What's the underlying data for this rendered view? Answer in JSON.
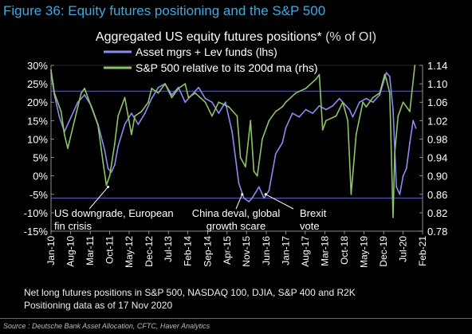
{
  "figure_title": "Figure 36: Equity futures positioning and the S&P 500",
  "chart_data": {
    "type": "line",
    "title": "Aggregated US equity futures positions*",
    "title_unit": "(% of OI)",
    "series": [
      {
        "name": "Asset mgrs + Lev funds (lhs)",
        "axis": "left",
        "color": "#8c8cf0",
        "x": [
          2010.0,
          2010.1,
          2010.25,
          2010.4,
          2010.6,
          2010.8,
          2011.0,
          2011.2,
          2011.4,
          2011.6,
          2011.7,
          2011.8,
          2011.9,
          2012.0,
          2012.2,
          2012.4,
          2012.6,
          2012.8,
          2013.0,
          2013.2,
          2013.4,
          2013.6,
          2013.8,
          2014.0,
          2014.2,
          2014.4,
          2014.6,
          2014.8,
          2015.0,
          2015.2,
          2015.4,
          2015.6,
          2015.75,
          2015.9,
          2016.0,
          2016.2,
          2016.35,
          2016.5,
          2016.7,
          2016.9,
          2017.0,
          2017.2,
          2017.4,
          2017.6,
          2017.8,
          2018.0,
          2018.2,
          2018.4,
          2018.6,
          2018.8,
          2018.9,
          2019.0,
          2019.2,
          2019.4,
          2019.6,
          2019.8,
          2020.0,
          2020.1,
          2020.2,
          2020.3,
          2020.4,
          2020.5,
          2020.6,
          2020.7,
          2020.8,
          2020.88
        ],
        "values": [
          28,
          22,
          16,
          12,
          16,
          20,
          22,
          19,
          14,
          7,
          2,
          1,
          3,
          8,
          14,
          17,
          14,
          17,
          21,
          24,
          25,
          22,
          24,
          20,
          22,
          24,
          21,
          20,
          17,
          20,
          12,
          -2,
          -6,
          -7,
          -6,
          -3,
          -6,
          -4,
          6,
          9,
          13,
          17,
          16,
          18,
          17,
          19,
          18,
          19,
          21,
          19,
          18,
          16,
          20,
          21,
          20,
          22,
          28,
          27,
          18,
          -3,
          -5,
          0,
          2,
          9,
          15,
          13
        ]
      },
      {
        "name": "S&P 500 relative to its 200d ma (rhs)",
        "axis": "right",
        "color": "#8fc36a",
        "x": [
          2010.0,
          2010.1,
          2010.3,
          2010.4,
          2010.5,
          2010.7,
          2010.9,
          2011.0,
          2011.2,
          2011.4,
          2011.55,
          2011.65,
          2011.75,
          2011.9,
          2012.0,
          2012.2,
          2012.4,
          2012.5,
          2012.7,
          2012.9,
          2013.0,
          2013.2,
          2013.4,
          2013.6,
          2013.8,
          2014.0,
          2014.1,
          2014.3,
          2014.6,
          2014.8,
          2015.0,
          2015.3,
          2015.55,
          2015.65,
          2015.8,
          2015.95,
          2016.05,
          2016.15,
          2016.3,
          2016.5,
          2016.7,
          2016.9,
          2017.0,
          2017.3,
          2017.6,
          2017.9,
          2018.0,
          2018.1,
          2018.2,
          2018.5,
          2018.7,
          2018.85,
          2018.95,
          2019.1,
          2019.3,
          2019.4,
          2019.6,
          2019.8,
          2019.95,
          2020.0,
          2020.1,
          2020.2,
          2020.25,
          2020.35,
          2020.5,
          2020.7,
          2020.85
        ],
        "values": [
          1.13,
          1.08,
          1.04,
          0.99,
          0.96,
          1.02,
          1.08,
          1.09,
          1.05,
          1.01,
          0.93,
          0.88,
          0.9,
          0.97,
          1.03,
          1.07,
          0.99,
          1.03,
          1.04,
          1.06,
          1.09,
          1.08,
          1.1,
          1.07,
          1.09,
          1.1,
          1.07,
          1.08,
          1.06,
          1.03,
          1.06,
          1.05,
          1.03,
          0.94,
          0.92,
          1.02,
          0.91,
          0.9,
          0.98,
          1.02,
          1.04,
          1.05,
          1.06,
          1.08,
          1.09,
          1.11,
          1.12,
          1.0,
          1.02,
          1.03,
          1.06,
          1.02,
          0.86,
          0.99,
          1.06,
          1.05,
          1.07,
          1.08,
          1.12,
          1.11,
          1.08,
          0.81,
          0.95,
          1.03,
          1.06,
          1.04,
          1.14
        ]
      }
    ],
    "left_axis": {
      "min": -15,
      "max": 30,
      "ticks": [
        "30%",
        "25%",
        "20%",
        "15%",
        "10%",
        "5%",
        "0%",
        "-5%",
        "-10%",
        "-15%"
      ]
    },
    "right_axis": {
      "min": 0.78,
      "max": 1.14,
      "ticks": [
        "1.14",
        "1.10",
        "1.06",
        "1.02",
        "0.98",
        "0.94",
        "0.90",
        "0.86",
        "0.82",
        "0.78"
      ]
    },
    "x_range": [
      2010.0,
      2021.08
    ],
    "x_tick_labels": [
      "Jan-10",
      "Aug-10",
      "Mar-11",
      "Oct-11",
      "May-12",
      "Dec-12",
      "Jul-13",
      "Feb-14",
      "Sep-14",
      "Apr-15",
      "Nov-15",
      "Jun-16",
      "Jan-17",
      "Aug-17",
      "Mar-18",
      "Oct-18",
      "May-19",
      "Dec-19",
      "Jul-20",
      "Feb-21"
    ],
    "x_tick_values": [
      2010.0,
      2010.58,
      2011.17,
      2011.75,
      2012.33,
      2012.92,
      2013.5,
      2014.08,
      2014.67,
      2015.25,
      2015.83,
      2016.42,
      2017.0,
      2017.58,
      2018.17,
      2018.75,
      2019.33,
      2019.92,
      2020.5,
      2021.08
    ],
    "reference_lines": [
      {
        "axis": "left",
        "value": -6
      },
      {
        "axis": "left",
        "value": 23
      }
    ],
    "annotations": [
      {
        "text": "US downgrade, European fin crisis",
        "target_x": 2011.7,
        "target_y": -3
      },
      {
        "text": "China deval, global growth scare",
        "target_x": 2015.7,
        "target_y": -5
      },
      {
        "text": "Brexit vote",
        "target_x": 2016.4,
        "target_y": -5
      }
    ]
  },
  "notes": [
    "Net long futures positions in S&P 500, NASDAQ 100, DJIA, S&P 400 and R2K",
    "Positioning data as of 17 Nov 2020"
  ],
  "source": "Source : Deutsche Bank Asset Allocation, CFTC, Haver Analytics"
}
